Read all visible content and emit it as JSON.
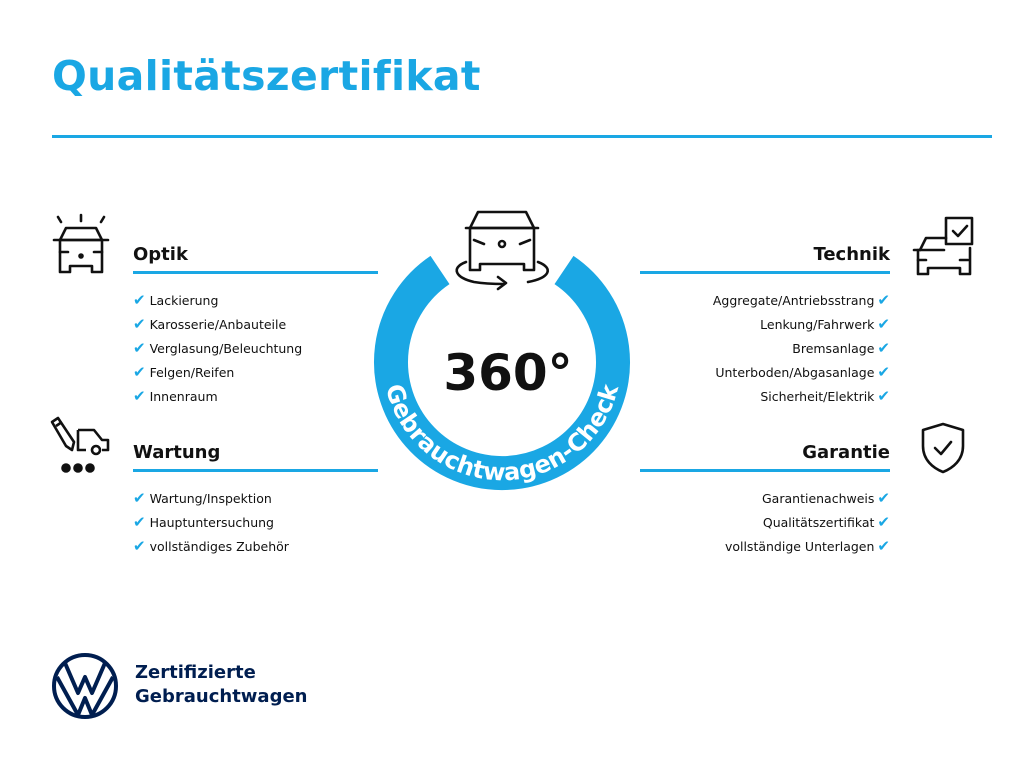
{
  "title": "Qualitätszertifikat",
  "colors": {
    "accent": "#1aa7e4",
    "brand_navy": "#001e50"
  },
  "center": {
    "number": "360°",
    "arc_text": "Gebrauchtwagen-Check",
    "icon": "car-rotate-icon"
  },
  "check_glyph": "✔",
  "sections": {
    "optik": {
      "heading": "Optik",
      "icon": "car-lights-icon",
      "items": [
        "Lackierung",
        "Karosserie/Anbauteile",
        "Verglasung/Beleuchtung",
        "Felgen/Reifen",
        "Innenraum"
      ]
    },
    "wartung": {
      "heading": "Wartung",
      "icon": "car-service-icon",
      "items": [
        "Wartung/Inspektion",
        "Hauptuntersuchung",
        "vollständiges Zubehör"
      ]
    },
    "technik": {
      "heading": "Technik",
      "icon": "car-checklist-icon",
      "items": [
        "Aggregate/Antriebsstrang",
        "Lenkung/Fahrwerk",
        "Bremsanlage",
        "Unterboden/Abgasanlage",
        "Sicherheit/Elektrik"
      ]
    },
    "garantie": {
      "heading": "Garantie",
      "icon": "shield-check-icon",
      "items": [
        "Garantienachweis",
        "Qualitätszertifikat",
        "vollständige Unterlagen"
      ]
    }
  },
  "brand": {
    "line1": "Zertifizierte",
    "line2": "Gebrauchtwagen",
    "logo": "vw-logo"
  }
}
